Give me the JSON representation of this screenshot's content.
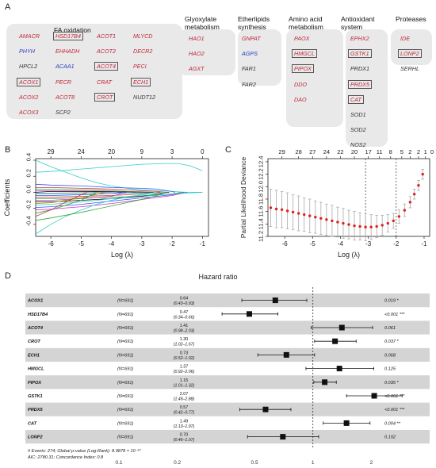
{
  "panels": {
    "a": "A",
    "b": "B",
    "c": "C",
    "d": "D"
  },
  "panel_a": {
    "colors": {
      "red": "#c0283a",
      "blue": "#2a3cc8",
      "black": "#333333"
    },
    "boxes": [
      {
        "title": "FA oxidation",
        "genes": [
          {
            "name": "AMACR",
            "color": "red",
            "boxed": false
          },
          {
            "name": "HSD17B4",
            "color": "red",
            "boxed": true
          },
          {
            "name": "ACOT1",
            "color": "red",
            "boxed": false
          },
          {
            "name": "MLYCD",
            "color": "red",
            "boxed": false
          },
          {
            "name": "PHYH",
            "color": "blue",
            "boxed": false
          },
          {
            "name": "EHHADH",
            "color": "red",
            "boxed": false
          },
          {
            "name": "ACOT2",
            "color": "red",
            "boxed": false
          },
          {
            "name": "DECR2",
            "color": "red",
            "boxed": false
          },
          {
            "name": "HPCL2",
            "color": "black",
            "boxed": false
          },
          {
            "name": "ACAA1",
            "color": "blue",
            "boxed": false
          },
          {
            "name": "ACOT4",
            "color": "red",
            "boxed": true
          },
          {
            "name": "PECI",
            "color": "red",
            "boxed": false
          },
          {
            "name": "ACOX1",
            "color": "red",
            "boxed": true
          },
          {
            "name": "PECR",
            "color": "red",
            "boxed": false
          },
          {
            "name": "CRAT",
            "color": "red",
            "boxed": false
          },
          {
            "name": "ECH1",
            "color": "red",
            "boxed": true
          },
          {
            "name": "ACOX2",
            "color": "red",
            "boxed": false
          },
          {
            "name": "ACOT8",
            "color": "red",
            "boxed": false
          },
          {
            "name": "CROT",
            "color": "red",
            "boxed": true
          },
          {
            "name": "NUDT12",
            "color": "black",
            "boxed": false
          },
          {
            "name": "ACOX3",
            "color": "red",
            "boxed": false
          },
          {
            "name": "SCP2",
            "color": "black",
            "boxed": false
          }
        ]
      },
      {
        "title": "Glyoxylate metabolism",
        "genes": [
          {
            "name": "HAO1",
            "color": "red",
            "boxed": false
          },
          {
            "name": "HAO2",
            "color": "red",
            "boxed": false
          },
          {
            "name": "AGXT",
            "color": "red",
            "boxed": false
          }
        ]
      },
      {
        "title": "Etherlipids synthesis",
        "genes": [
          {
            "name": "GNPAT",
            "color": "red",
            "boxed": false
          },
          {
            "name": "AGPS",
            "color": "blue",
            "boxed": false
          },
          {
            "name": "FAR1",
            "color": "black",
            "boxed": false
          },
          {
            "name": "FAR2",
            "color": "black",
            "boxed": false
          }
        ]
      },
      {
        "title": "Amino acid metabolism",
        "genes": [
          {
            "name": "PAOX",
            "color": "red",
            "boxed": false
          },
          {
            "name": "HMGCL",
            "color": "red",
            "boxed": true
          },
          {
            "name": "PIPOX",
            "color": "red",
            "boxed": true
          },
          {
            "name": "DDO",
            "color": "red",
            "boxed": false
          },
          {
            "name": "DAO",
            "color": "red",
            "boxed": false
          }
        ]
      },
      {
        "title": "Antioxidant system",
        "genes": [
          {
            "name": "EPHX2",
            "color": "red",
            "boxed": false
          },
          {
            "name": "GSTK1",
            "color": "red",
            "boxed": true
          },
          {
            "name": "PRDX1",
            "color": "black",
            "boxed": false
          },
          {
            "name": "PRDX5",
            "color": "red",
            "boxed": true
          },
          {
            "name": "CAT",
            "color": "red",
            "boxed": true
          },
          {
            "name": "SOD1",
            "color": "black",
            "boxed": false
          },
          {
            "name": "SOD2",
            "color": "black",
            "boxed": false
          },
          {
            "name": "NOS2",
            "color": "black",
            "boxed": false
          }
        ]
      },
      {
        "title": "Proteases",
        "genes": [
          {
            "name": "IDE",
            "color": "red",
            "boxed": false
          },
          {
            "name": "LONP2",
            "color": "red",
            "boxed": true
          },
          {
            "name": "SERHL",
            "color": "black",
            "boxed": false
          }
        ]
      }
    ]
  },
  "chart_data": [
    {
      "type": "line",
      "title": "",
      "xlabel": "Log (λ)",
      "ylabel": "Coefficients",
      "xlim": [
        -6.5,
        -0.8
      ],
      "ylim": [
        -0.55,
        0.42
      ],
      "x_ticks": [
        -6,
        -5,
        -4,
        -3,
        -2,
        -1
      ],
      "y_ticks": [
        -0.4,
        -0.2,
        0.0,
        0.2,
        0.4
      ],
      "y_tick_labels": [
        "-0.4",
        "-0.2",
        "0.0",
        "0.2",
        "0.4"
      ],
      "top_axis_positions": [
        -6.0,
        -5.0,
        -4.0,
        -3.0,
        -2.0,
        -1.0
      ],
      "top_axis_labels": [
        "29",
        "24",
        "20",
        "9",
        "3",
        "0"
      ],
      "series": [
        {
          "color": "#33cccc",
          "x": [
            -6.5,
            -6.0,
            -5.0,
            -4.0,
            -3.0,
            -2.2,
            -1.8,
            -1.4,
            -1.0
          ],
          "values": [
            0.25,
            0.26,
            0.29,
            0.32,
            0.35,
            0.36,
            0.36,
            0.33,
            0.27
          ]
        },
        {
          "color": "#33cccc",
          "x": [
            -6.5,
            -6.0,
            -5.5,
            -5.0,
            -4.5,
            -4.0,
            -3.5,
            -3.0,
            -2.5,
            -2.0,
            -1.5,
            -1.0
          ],
          "values": [
            0.4,
            0.32,
            0.25,
            0.18,
            0.12,
            0.08,
            0.05,
            0.03,
            0.02,
            0.01,
            0.0,
            0.0
          ]
        },
        {
          "color": "#3355ee",
          "x": [
            -6.5,
            -6.0,
            -5.0,
            -4.0,
            -3.0,
            -2.5,
            -2.0,
            -1.9
          ],
          "values": [
            0.1,
            0.09,
            0.08,
            0.06,
            0.05,
            0.04,
            0.01,
            0.0
          ]
        },
        {
          "color": "#cc3333",
          "x": [
            -6.5,
            -6.0,
            -5.0,
            -4.0,
            -3.0,
            -2.5,
            -2.2
          ],
          "values": [
            0.06,
            0.06,
            0.05,
            0.04,
            0.02,
            0.01,
            0.0
          ]
        },
        {
          "color": "#33aa33",
          "x": [
            -6.5,
            -6.0,
            -5.0,
            -4.0,
            -3.5,
            -3.0,
            -2.7
          ],
          "values": [
            0.04,
            0.04,
            0.03,
            0.02,
            0.01,
            0.005,
            0.0
          ]
        },
        {
          "color": "#cc33cc",
          "x": [
            -6.5,
            -6.0,
            -5.0,
            -4.0,
            -3.2
          ],
          "values": [
            0.02,
            0.02,
            0.015,
            0.01,
            0.0
          ]
        },
        {
          "color": "#000000",
          "x": [
            -6.5,
            -6.0,
            -5.0,
            -4.0,
            -3.0,
            -2.6
          ],
          "values": [
            0.0,
            0.01,
            0.01,
            0.005,
            0.002,
            0.0
          ]
        },
        {
          "color": "#888888",
          "x": [
            -6.5,
            -6.0,
            -5.0,
            -4.5,
            -4.0
          ],
          "values": [
            -0.01,
            -0.01,
            -0.005,
            -0.002,
            0.0
          ]
        },
        {
          "color": "#33cccc",
          "x": [
            -6.5,
            -6.0,
            -5.0,
            -4.0,
            -3.0,
            -2.3
          ],
          "values": [
            -0.02,
            -0.02,
            -0.02,
            -0.015,
            -0.008,
            0.0
          ]
        },
        {
          "color": "#3355ee",
          "x": [
            -6.5,
            -6.0,
            -5.0,
            -4.0,
            -3.6
          ],
          "values": [
            -0.04,
            -0.04,
            -0.03,
            -0.015,
            0.0
          ]
        },
        {
          "color": "#cc3333",
          "x": [
            -6.5,
            -6.0,
            -5.0,
            -4.0,
            -3.0,
            -2.4
          ],
          "values": [
            -0.06,
            -0.06,
            -0.05,
            -0.04,
            -0.02,
            0.0
          ]
        },
        {
          "color": "#33aa33",
          "x": [
            -6.5,
            -6.0,
            -5.0,
            -4.0,
            -3.0,
            -2.0,
            -1.7
          ],
          "values": [
            -0.08,
            -0.08,
            -0.07,
            -0.06,
            -0.05,
            -0.02,
            0.0
          ]
        },
        {
          "color": "#cc33cc",
          "x": [
            -6.5,
            -6.0,
            -5.0,
            -4.0,
            -3.5
          ],
          "values": [
            -0.1,
            -0.1,
            -0.08,
            -0.05,
            0.0
          ]
        },
        {
          "color": "#000000",
          "x": [
            -6.5,
            -6.0,
            -5.0,
            -4.0,
            -3.0,
            -2.5,
            -2.1
          ],
          "values": [
            -0.12,
            -0.12,
            -0.1,
            -0.08,
            -0.05,
            -0.02,
            0.0
          ]
        },
        {
          "color": "#999900",
          "x": [
            -6.5,
            -6.0,
            -5.0,
            -4.2
          ],
          "values": [
            -0.14,
            -0.13,
            -0.07,
            0.0
          ]
        },
        {
          "color": "#33cccc",
          "x": [
            -6.5,
            -6.0,
            -5.0,
            -4.0,
            -3.0,
            -2.5
          ],
          "values": [
            -0.16,
            -0.15,
            -0.12,
            -0.08,
            -0.03,
            0.0
          ]
        },
        {
          "color": "#3355ee",
          "x": [
            -6.5,
            -6.0,
            -5.0,
            -4.0,
            -3.0,
            -2.0,
            -1.6
          ],
          "values": [
            -0.19,
            -0.18,
            -0.15,
            -0.11,
            -0.07,
            -0.03,
            0.0
          ]
        },
        {
          "color": "#33aa33",
          "x": [
            -6.5,
            -6.0,
            -5.0,
            -4.5
          ],
          "values": [
            -0.26,
            -0.22,
            -0.1,
            0.0
          ]
        },
        {
          "color": "#cc3333",
          "x": [
            -6.5,
            -6.0,
            -5.5,
            -5.0,
            -4.8
          ],
          "values": [
            -0.3,
            -0.22,
            -0.12,
            -0.03,
            0.0
          ]
        },
        {
          "color": "#cc33cc",
          "x": [
            -6.5,
            -6.0,
            -5.0,
            -4.0,
            -3.0,
            -2.0,
            -1.5
          ],
          "values": [
            -0.22,
            -0.21,
            -0.18,
            -0.14,
            -0.09,
            -0.04,
            0.0
          ]
        },
        {
          "color": "#33cccc",
          "x": [
            -6.5,
            -6.0,
            -5.5,
            -5.0,
            -4.5,
            -4.0,
            -3.5,
            -3.0,
            -2.5,
            -2.0,
            -1.5,
            -1.0
          ],
          "values": [
            -0.52,
            -0.4,
            -0.3,
            -0.22,
            -0.15,
            -0.1,
            -0.06,
            -0.04,
            -0.03,
            -0.02,
            -0.01,
            0.0
          ]
        },
        {
          "color": "#33aa33",
          "x": [
            -6.5,
            -6.0,
            -5.0,
            -4.0,
            -3.0,
            -2.5,
            -2.2
          ],
          "values": [
            -0.35,
            -0.32,
            -0.25,
            -0.17,
            -0.09,
            -0.04,
            0.0
          ]
        }
      ]
    },
    {
      "type": "scatter",
      "title": "",
      "xlabel": "Log (λ)",
      "ylabel": "Partial Likelihood Deviance",
      "xlim": [
        -6.6,
        -0.8
      ],
      "ylim": [
        11.2,
        12.45
      ],
      "x_ticks": [
        -6,
        -5,
        -4,
        -3,
        -2,
        -1
      ],
      "y_ticks": [
        11.2,
        11.4,
        11.6,
        11.8,
        12.0,
        12.2,
        12.4
      ],
      "y_tick_labels": [
        "11.2",
        "11.4",
        "11.6",
        "11.8",
        "12.0",
        "12.2",
        "12.4"
      ],
      "top_axis_positions": [
        -6.1,
        -5.5,
        -5.0,
        -4.5,
        -4.0,
        -3.5,
        -3.0,
        -2.6,
        -2.2,
        -1.8,
        -1.5,
        -1.2,
        -0.95
      ],
      "top_axis_labels": [
        "29",
        "28",
        "27",
        "24",
        "22",
        "20",
        "17",
        "11",
        "8",
        "5",
        "2",
        "2",
        "1"
      ],
      "top_axis_end_label": "0",
      "vlines": [
        -3.1,
        -2.0
      ],
      "x": [
        -6.5,
        -6.3,
        -6.1,
        -5.9,
        -5.7,
        -5.5,
        -5.3,
        -5.1,
        -4.9,
        -4.7,
        -4.5,
        -4.3,
        -4.1,
        -3.9,
        -3.7,
        -3.5,
        -3.3,
        -3.1,
        -2.9,
        -2.7,
        -2.5,
        -2.3,
        -2.1,
        -1.9,
        -1.7,
        -1.5,
        -1.35,
        -1.2,
        -1.05
      ],
      "values": [
        11.66,
        11.64,
        11.63,
        11.61,
        11.59,
        11.57,
        11.55,
        11.53,
        11.51,
        11.49,
        11.47,
        11.45,
        11.43,
        11.41,
        11.39,
        11.37,
        11.36,
        11.35,
        11.35,
        11.36,
        11.38,
        11.41,
        11.45,
        11.52,
        11.62,
        11.75,
        11.88,
        12.02,
        12.2
      ],
      "err": [
        0.3,
        0.3,
        0.29,
        0.29,
        0.28,
        0.28,
        0.27,
        0.27,
        0.26,
        0.26,
        0.25,
        0.25,
        0.24,
        0.24,
        0.23,
        0.23,
        0.22,
        0.22,
        0.2,
        0.18,
        0.16,
        0.14,
        0.12,
        0.11,
        0.1,
        0.09,
        0.08,
        0.08,
        0.08
      ]
    },
    {
      "type": "forest",
      "title": "Hazard ratio",
      "xscale": "log",
      "xlim": [
        0.1,
        3.1
      ],
      "x_ticks": [
        0.1,
        0.2,
        0.5,
        1,
        2
      ],
      "x_tick_labels": [
        "0.1",
        "0.2",
        "0.5",
        "1",
        "2"
      ],
      "reference_line": 1,
      "rows": [
        {
          "gene": "ACOX1",
          "n": "(N=691)",
          "hr": 0.64,
          "lo": 0.43,
          "hi": 0.93,
          "hr_label": "0.64",
          "ci_label": "(0.43–0.93)",
          "p_label": "0.019 *"
        },
        {
          "gene": "HSD17B4",
          "n": "(N=691)",
          "hr": 0.47,
          "lo": 0.34,
          "hi": 0.66,
          "hr_label": "0.47",
          "ci_label": "(0.34–0.66)",
          "p_label": "<0.001 ***"
        },
        {
          "gene": "ACOT4",
          "n": "(N=691)",
          "hr": 1.41,
          "lo": 0.98,
          "hi": 2.03,
          "hr_label": "1.41",
          "ci_label": "(0.98–2.03)",
          "p_label": "0.061"
        },
        {
          "gene": "CROT",
          "n": "(N=691)",
          "hr": 1.3,
          "lo": 1.02,
          "hi": 1.67,
          "hr_label": "1.30",
          "ci_label": "(1.02–1.67)",
          "p_label": "0.037 *"
        },
        {
          "gene": "ECH1",
          "n": "(N=691)",
          "hr": 0.73,
          "lo": 0.52,
          "hi": 1.02,
          "hr_label": "0.73",
          "ci_label": "(0.52–1.02)",
          "p_label": "0.068"
        },
        {
          "gene": "HMGCL",
          "n": "(N=691)",
          "hr": 1.37,
          "lo": 0.92,
          "hi": 2.06,
          "hr_label": "1.37",
          "ci_label": "(0.92–2.06)",
          "p_label": "0.125"
        },
        {
          "gene": "PIPOX",
          "n": "(N=691)",
          "hr": 1.15,
          "lo": 1.01,
          "hi": 1.32,
          "hr_label": "1.15",
          "ci_label": "(1.01–1.32)",
          "p_label": "0.035 *"
        },
        {
          "gene": "GSTK1",
          "n": "(N=691)",
          "hr": 2.07,
          "lo": 1.49,
          "hi": 2.88,
          "hr_label": "2.07",
          "ci_label": "(1.49–2.88)",
          "p_label": "<0.001 ***"
        },
        {
          "gene": "PRDX5",
          "n": "(N=691)",
          "hr": 0.57,
          "lo": 0.42,
          "hi": 0.77,
          "hr_label": "0.57",
          "ci_label": "(0.42–0.77)",
          "p_label": "<0.001 ***"
        },
        {
          "gene": "CAT",
          "n": "(N=691)",
          "hr": 1.49,
          "lo": 1.13,
          "hi": 1.97,
          "hr_label": "1.49",
          "ci_label": "(1.13–1.97)",
          "p_label": "0.004 **"
        },
        {
          "gene": "LONP2",
          "n": "(N=691)",
          "hr": 0.7,
          "lo": 0.46,
          "hi": 1.07,
          "hr_label": "0.70",
          "ci_label": "(0.46–1.07)",
          "p_label": "0.102"
        }
      ],
      "footnote_1": "# Events: 274; Global p-value (Log-Rank): 8.9878 × 10⁻⁶⁷",
      "footnote_2": "AIC: 2780.31; Concordance Index: 0.8"
    }
  ]
}
